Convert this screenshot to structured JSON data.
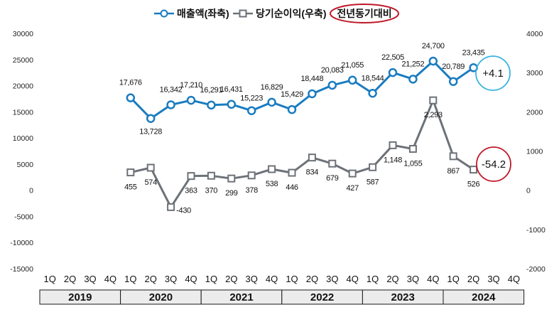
{
  "chart_data": {
    "type": "line",
    "title": "",
    "legend": {
      "series1_label": "매출액(좌축)",
      "series2_label": "당기순이익(우축)",
      "yoy_label": "전년동기대비",
      "placement": "top-center"
    },
    "colors": {
      "sales": "#1a7cc0",
      "profit": "#6d7278",
      "yoy_ring": "#c0192a",
      "sales_badge_ring": "#3ab3df",
      "profit_badge_ring": "#c0192a",
      "year_bar": "#ececec"
    },
    "years": [
      "2019",
      "2020",
      "2021",
      "2022",
      "2023",
      "2024"
    ],
    "quarters": [
      "1Q",
      "2Q",
      "3Q",
      "4Q"
    ],
    "categories": [
      "2019 1Q",
      "2019 2Q",
      "2019 3Q",
      "2019 4Q",
      "2020 1Q",
      "2020 2Q",
      "2020 3Q",
      "2020 4Q",
      "2021 1Q",
      "2021 2Q",
      "2021 3Q",
      "2021 4Q",
      "2022 1Q",
      "2022 2Q",
      "2022 3Q",
      "2022 4Q",
      "2023 1Q",
      "2023 2Q",
      "2023 3Q",
      "2023 4Q",
      "2024 1Q",
      "2024 2Q",
      "2024 3Q",
      "2024 4Q"
    ],
    "left_axis": {
      "min": -15000,
      "max": 30000,
      "step": 5000,
      "ticks": [
        "-15000",
        "-10000",
        "-5000",
        "0",
        "5000",
        "10000",
        "15000",
        "20000",
        "25000",
        "30000"
      ]
    },
    "right_axis": {
      "min": -2000,
      "max": 4000,
      "step": 1000,
      "ticks": [
        "-2000",
        "-1000",
        "0",
        "1000",
        "2000",
        "3000",
        "4000"
      ]
    },
    "series": [
      {
        "name": "매출액(좌축)",
        "axis": "left",
        "values": [
          null,
          null,
          null,
          null,
          17676,
          13728,
          16342,
          17210,
          16291,
          16431,
          15223,
          16829,
          15429,
          18448,
          20083,
          21055,
          18544,
          22505,
          21252,
          24700,
          20789,
          23435,
          null,
          null
        ],
        "labels": [
          null,
          null,
          null,
          null,
          "17,676",
          "13,728",
          "16,342",
          "17,210",
          "16,291",
          "16,431",
          "15,223",
          "16,829",
          "15,429",
          "18,448",
          "20,083",
          "21,055",
          "18,544",
          "22,505",
          "21,252",
          "24,700",
          "20,789",
          "23,435",
          null,
          null
        ]
      },
      {
        "name": "당기순이익(우축)",
        "axis": "right",
        "values": [
          null,
          null,
          null,
          null,
          455,
          574,
          -430,
          363,
          370,
          299,
          378,
          538,
          446,
          834,
          679,
          427,
          587,
          1148,
          1055,
          2293,
          867,
          526,
          null,
          null
        ],
        "labels": [
          null,
          null,
          null,
          null,
          "455",
          "574",
          "-430",
          "363",
          "370",
          "299",
          "378",
          "538",
          "446",
          "834",
          "679",
          "427",
          "587",
          "1,148",
          "1,055",
          "2,293",
          "867",
          "526",
          null,
          null
        ]
      }
    ],
    "badges": {
      "sales_yoy": "+4.1",
      "profit_yoy": "-54.2"
    }
  }
}
